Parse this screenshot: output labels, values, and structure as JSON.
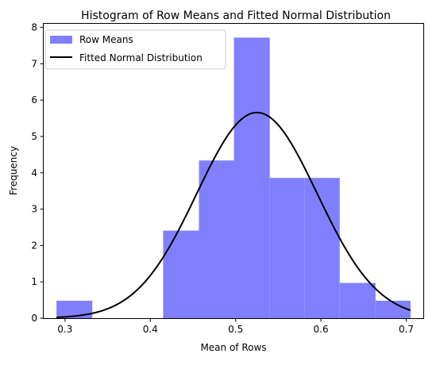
{
  "chart_data": {
    "type": "bar",
    "title": "Histogram of Row Means and Fitted Normal Distribution",
    "xlabel": "Mean of Rows",
    "ylabel": "Frequency",
    "xlim": [
      0.275,
      0.72
    ],
    "ylim": [
      0,
      8.1
    ],
    "xticks": [
      0.3,
      0.4,
      0.5,
      0.6,
      0.7
    ],
    "yticks": [
      0,
      1,
      2,
      3,
      4,
      5,
      6,
      7,
      8
    ],
    "histogram": {
      "name": "Row Means",
      "color": "#8080ff",
      "bins": [
        {
          "x0": 0.29,
          "x1": 0.332,
          "value": 0.48
        },
        {
          "x0": 0.332,
          "x1": 0.374,
          "value": 0
        },
        {
          "x0": 0.374,
          "x1": 0.415,
          "value": 0
        },
        {
          "x0": 0.415,
          "x1": 0.457,
          "value": 2.41
        },
        {
          "x0": 0.457,
          "x1": 0.498,
          "value": 4.34
        },
        {
          "x0": 0.498,
          "x1": 0.54,
          "value": 7.72
        },
        {
          "x0": 0.54,
          "x1": 0.581,
          "value": 3.86
        },
        {
          "x0": 0.581,
          "x1": 0.622,
          "value": 3.86
        },
        {
          "x0": 0.622,
          "x1": 0.664,
          "value": 0.97
        },
        {
          "x0": 0.664,
          "x1": 0.705,
          "value": 0.48
        }
      ]
    },
    "normal_fit": {
      "name": "Fitted Normal Distribution",
      "color": "#000000",
      "mu": 0.525,
      "sigma": 0.0705,
      "x_range": [
        0.29,
        0.705
      ]
    },
    "legend_position": "upper-left",
    "grid": false
  }
}
